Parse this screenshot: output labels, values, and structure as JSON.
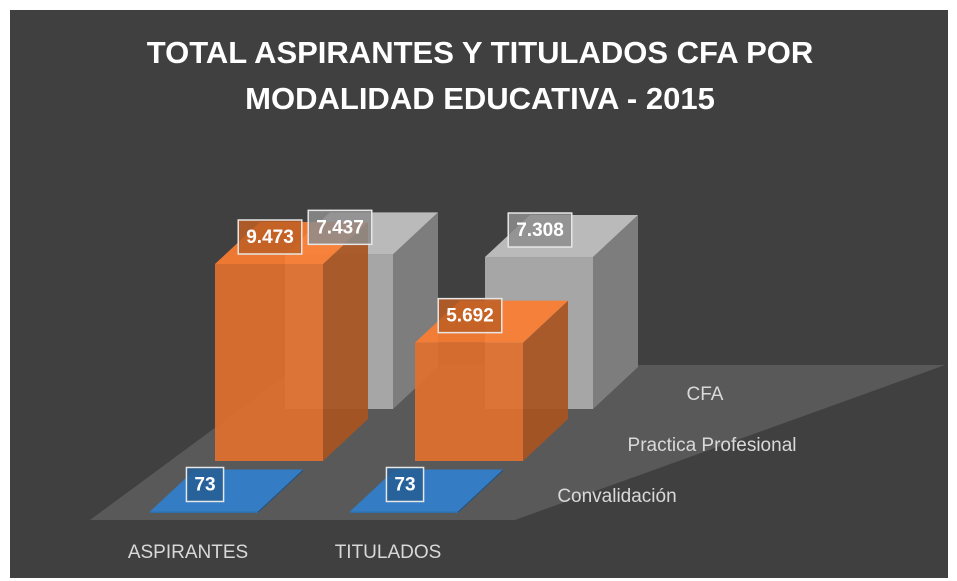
{
  "chart_data": {
    "type": "bar3d",
    "title": "TOTAL ASPIRANTES Y TITULADOS CFA POR MODALIDAD EDUCATIVA - 2015",
    "categories": [
      "ASPIRANTES",
      "TITULADOS"
    ],
    "series": [
      {
        "name": "Convalidación",
        "color": "#2e6fae",
        "values": [
          73,
          73
        ],
        "value_labels": [
          "73",
          "73"
        ]
      },
      {
        "name": "Practica Profesional",
        "color": "#e0702c",
        "values": [
          9473,
          5692
        ],
        "value_labels": [
          "9.473",
          "5.692"
        ]
      },
      {
        "name": "CFA",
        "color": "#a6a6a6",
        "values": [
          7437,
          7308
        ],
        "value_labels": [
          "7.437",
          "7.308"
        ]
      }
    ]
  }
}
